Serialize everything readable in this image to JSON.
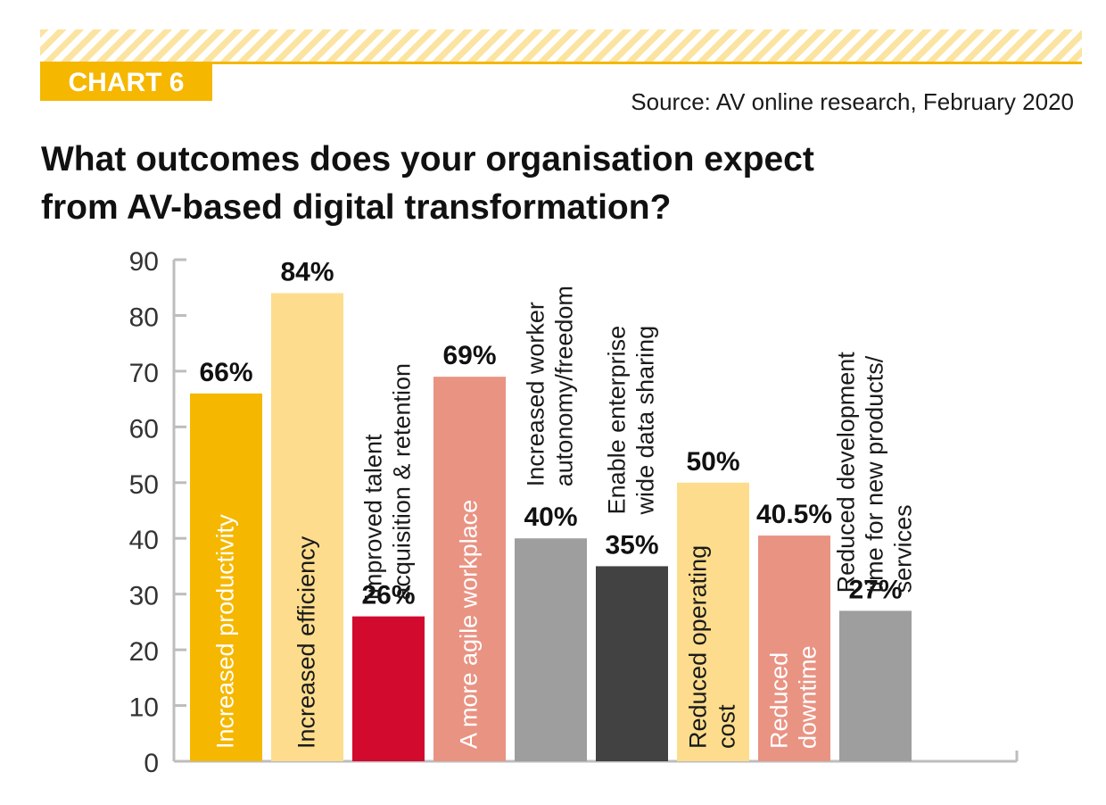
{
  "header": {
    "badge": "CHART 6",
    "source": "Source: AV online research, February 2020",
    "title_line1": "What outcomes does your organisation expect",
    "title_line2": "from AV-based digital transformation?"
  },
  "chart_data": {
    "type": "bar",
    "title": "What outcomes does your organisation expect from AV-based digital transformation?",
    "xlabel": "",
    "ylabel": "",
    "ylim": [
      0,
      90
    ],
    "yticks": [
      "0",
      "10",
      "20",
      "30",
      "40",
      "50",
      "60",
      "70",
      "80",
      "90"
    ],
    "grid": false,
    "categories": [
      "Increased productivity",
      "Increased efficiency",
      "Improved talent acquisition & retention",
      "A more agile workplace",
      "Increased worker autonomy/freedom",
      "Enable enterprise wide data sharing",
      "Reduced operating cost",
      "Reduced downtime",
      "Reduced development time for new products/ services"
    ],
    "category_lines": [
      [
        "Increased productivity"
      ],
      [
        "Increased efficiency"
      ],
      [
        "Improved talent",
        "acquisition & retention"
      ],
      [
        "A more agile workplace"
      ],
      [
        "Increased worker",
        "autonomy/freedom"
      ],
      [
        "Enable enterprise",
        "wide data sharing"
      ],
      [
        "Reduced operating",
        "cost"
      ],
      [
        "Reduced",
        "downtime"
      ],
      [
        "Reduced development",
        "time for new products/",
        "services"
      ]
    ],
    "values": [
      66,
      84,
      26,
      69,
      40,
      35,
      50,
      40.5,
      27
    ],
    "value_labels": [
      "66%",
      "84%",
      "26%",
      "69%",
      "40%",
      "35%",
      "50%",
      "40.5%",
      "27%"
    ],
    "colors": [
      "#f5b700",
      "#fddd8d",
      "#d20a2e",
      "#e99383",
      "#9e9e9e",
      "#424242",
      "#fddd8d",
      "#e99383",
      "#9e9e9e"
    ],
    "label_colors": [
      "#ffffff",
      "#1a1a1a",
      "#1a1a1a",
      "#ffffff",
      "#1a1a1a",
      "#1a1a1a",
      "#1a1a1a",
      "#ffffff",
      "#1a1a1a"
    ]
  }
}
